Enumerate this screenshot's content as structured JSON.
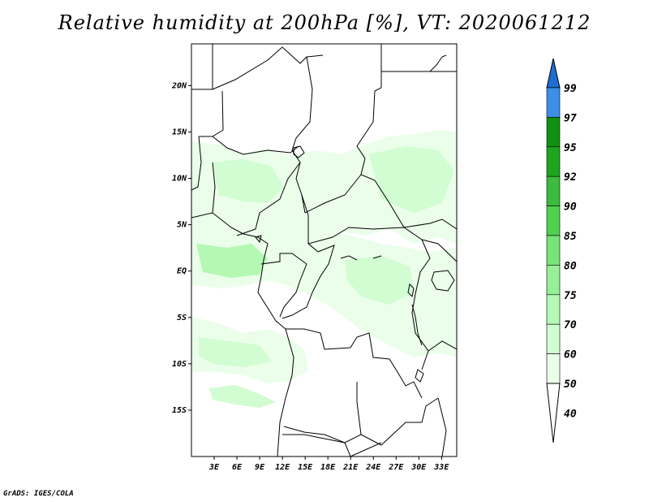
{
  "title": "Relative humidity at 200hPa [%], VT: 2020061212",
  "credit": "GrADS: IGES/COLA",
  "map": {
    "lat_labels": [
      "20N",
      "15N",
      "10N",
      "5N",
      "EQ",
      "5S",
      "10S",
      "15S"
    ],
    "lat_values": [
      20,
      15,
      10,
      5,
      0,
      -5,
      -10,
      -15
    ],
    "lon_labels": [
      "3E",
      "6E",
      "9E",
      "12E",
      "15E",
      "18E",
      "21E",
      "24E",
      "27E",
      "30E",
      "33E"
    ],
    "lon_values": [
      3,
      6,
      9,
      12,
      15,
      18,
      21,
      24,
      27,
      30,
      33
    ],
    "lat_range": [
      -20,
      24.5
    ],
    "lon_range": [
      0,
      35
    ]
  },
  "colorbar": {
    "labels": [
      "99",
      "97",
      "95",
      "92",
      "90",
      "85",
      "80",
      "75",
      "70",
      "60",
      "50",
      "40"
    ],
    "colors": [
      "#1e6ed2",
      "#3c8ee8",
      "#119111",
      "#1ea51e",
      "#3cbc3c",
      "#50d250",
      "#78e478",
      "#96f096",
      "#b4f8b4",
      "#d2fcd2",
      "#eafeea",
      "#ffffff"
    ],
    "over_color": "#1e6ed2"
  },
  "field_colors": {
    "level_40": "#eafeea",
    "level_50": "#d2fcd2",
    "level_60": "#b4f8b4"
  }
}
